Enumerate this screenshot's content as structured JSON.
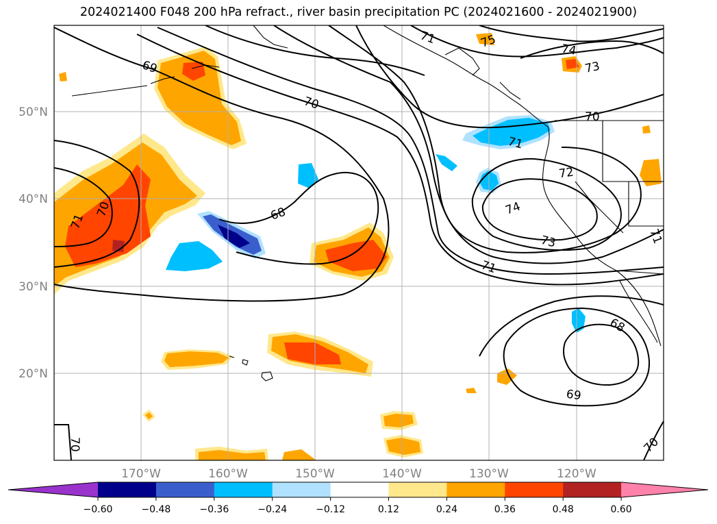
{
  "title": "2024021400 F048 200 hPa refract., river basin precipitation PC (2024021600 - 2024021900)",
  "map": {
    "lat_labels": [
      "50°N",
      "40°N",
      "30°N",
      "20°N"
    ],
    "lon_labels": [
      "170°W",
      "160°W",
      "150°W",
      "140°W",
      "130°W",
      "120°W"
    ],
    "gridlines": true
  },
  "contour_labels": [
    "69",
    "70",
    "75",
    "74",
    "73",
    "70",
    "71",
    "72",
    "74",
    "73",
    "71",
    "68",
    "71",
    "70",
    "71",
    "68",
    "69",
    "70",
    "70",
    "71"
  ],
  "colorbar": {
    "ticks": [
      "−0.60",
      "−0.48",
      "−0.36",
      "−0.24",
      "−0.12",
      "0.12",
      "0.24",
      "0.36",
      "0.48",
      "0.60"
    ],
    "colors": [
      "#9933cc",
      "#00008b",
      "#3a5fcd",
      "#00bfff",
      "#b0e2ff",
      "#ffffff",
      "#ffe88c",
      "#ffa500",
      "#ff4500",
      "#b22222",
      "#ff82ab"
    ],
    "extend": "both"
  },
  "colors": {
    "orange": "#ffa500",
    "light_yellow": "#ffe88c",
    "red_orange": "#ff4500",
    "dark_red": "#b22222",
    "deep_sky_blue": "#00bfff",
    "light_blue": "#b0e2ff",
    "royal_blue": "#3a5fcd",
    "navy": "#00008b"
  }
}
